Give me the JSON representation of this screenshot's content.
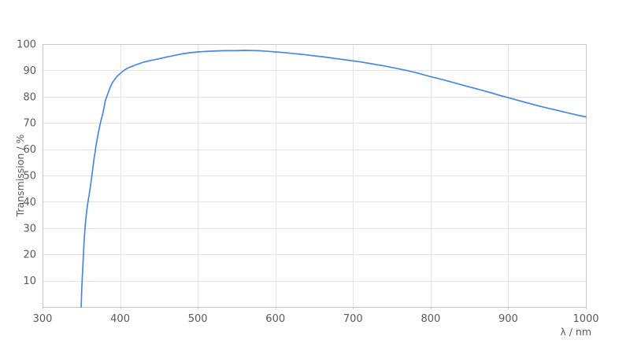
{
  "chart_data": {
    "type": "line",
    "title": "",
    "xlabel": "λ / nm",
    "ylabel": "Transmission / %",
    "xlim": [
      300,
      1000
    ],
    "ylim": [
      0,
      100
    ],
    "x_ticks": [
      300,
      400,
      500,
      600,
      700,
      800,
      900,
      1000
    ],
    "y_ticks": [
      10,
      20,
      30,
      40,
      50,
      60,
      70,
      80,
      90,
      100
    ],
    "grid": true,
    "legend": "none",
    "series": [
      {
        "name": "Transmission",
        "x": [
          349.8,
          350.5,
          351.5,
          352.5,
          353.5,
          355,
          356.5,
          358,
          360,
          362,
          364,
          366.5,
          369,
          372,
          375,
          378,
          381,
          384,
          387,
          390,
          393,
          396,
          400,
          405,
          410,
          415,
          420,
          430,
          440,
          450,
          460,
          470,
          480,
          490,
          500,
          510,
          520,
          530,
          540,
          550,
          560,
          570,
          580,
          590,
          600,
          610,
          620,
          630,
          640,
          650,
          660,
          670,
          680,
          690,
          700,
          710,
          720,
          730,
          740,
          750,
          760,
          770,
          780,
          790,
          800,
          810,
          820,
          830,
          840,
          850,
          860,
          870,
          880,
          890,
          900,
          910,
          920,
          930,
          940,
          950,
          960,
          970,
          980,
          990,
          1000
        ],
        "y": [
          0,
          7,
          13,
          19,
          24.5,
          31,
          35.5,
          39,
          42.5,
          46.5,
          51,
          56.5,
          61.5,
          66.5,
          70.5,
          74,
          78.5,
          81,
          83.5,
          85.3,
          86.6,
          87.7,
          88.8,
          90,
          90.9,
          91.5,
          92.1,
          93.1,
          93.8,
          94.4,
          95.1,
          95.7,
          96.3,
          96.7,
          97.0,
          97.2,
          97.35,
          97.45,
          97.5,
          97.5,
          97.6,
          97.55,
          97.45,
          97.25,
          97.0,
          96.8,
          96.5,
          96.2,
          95.9,
          95.5,
          95.2,
          94.8,
          94.4,
          94.0,
          93.6,
          93.2,
          92.7,
          92.2,
          91.7,
          91.1,
          90.5,
          89.9,
          89.2,
          88.4,
          87.6,
          86.9,
          86.1,
          85.3,
          84.5,
          83.7,
          82.9,
          82.1,
          81.3,
          80.4,
          79.6,
          78.8,
          78.0,
          77.2,
          76.4,
          75.7,
          75.0,
          74.3,
          73.6,
          72.9,
          72.3
        ]
      }
    ]
  },
  "colors": {
    "line": "#4a86e8",
    "grid": "#e4e4e4",
    "frame": "#c8c8c8",
    "text": "#5a5a5a",
    "background": "#ffffff"
  }
}
